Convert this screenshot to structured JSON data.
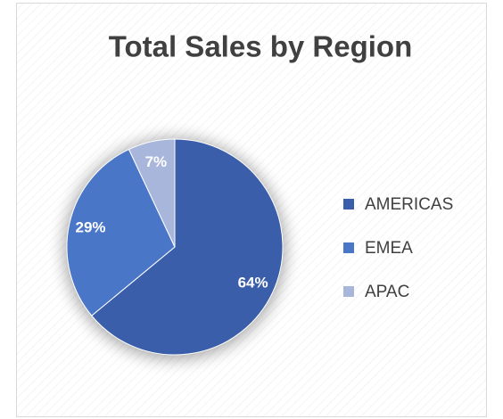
{
  "chart_data": {
    "type": "pie",
    "title": "Total Sales by Region",
    "categories": [
      "AMERICAS",
      "EMEA",
      "APAC"
    ],
    "values": [
      64,
      29,
      7
    ],
    "value_labels": [
      "64%",
      "29%",
      "7%"
    ],
    "colors": [
      "#3a5ea9",
      "#4a76c8",
      "#a8b6dc"
    ],
    "legend": "right"
  }
}
